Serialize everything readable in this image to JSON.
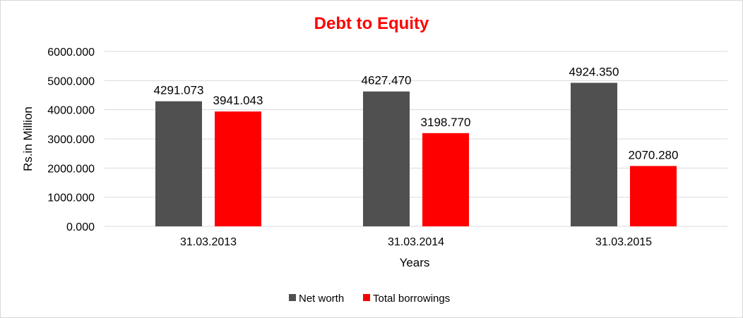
{
  "chart_data": {
    "type": "bar",
    "title": "Debt to Equity",
    "xlabel": "Years",
    "ylabel": "Rs.in Million",
    "categories": [
      "31.03.2013",
      "31.03.2014",
      "31.03.2015"
    ],
    "series": [
      {
        "name": "Net worth",
        "color": "#505050",
        "values": [
          4291.073,
          4627.47,
          4924.35
        ],
        "labels": [
          "4291.073",
          "4627.470",
          "4924.350"
        ]
      },
      {
        "name": "Total borrowings",
        "color": "#ff0000",
        "values": [
          3941.043,
          3198.77,
          2070.28
        ],
        "labels": [
          "3941.043",
          "3198.770",
          "2070.280"
        ]
      }
    ],
    "yticks": [
      "0.000",
      "1000.000",
      "2000.000",
      "3000.000",
      "4000.000",
      "5000.000",
      "6000.000"
    ],
    "ylim": [
      0,
      6000
    ],
    "grid": true,
    "legend_position": "bottom",
    "title_color": "#ff0000"
  }
}
